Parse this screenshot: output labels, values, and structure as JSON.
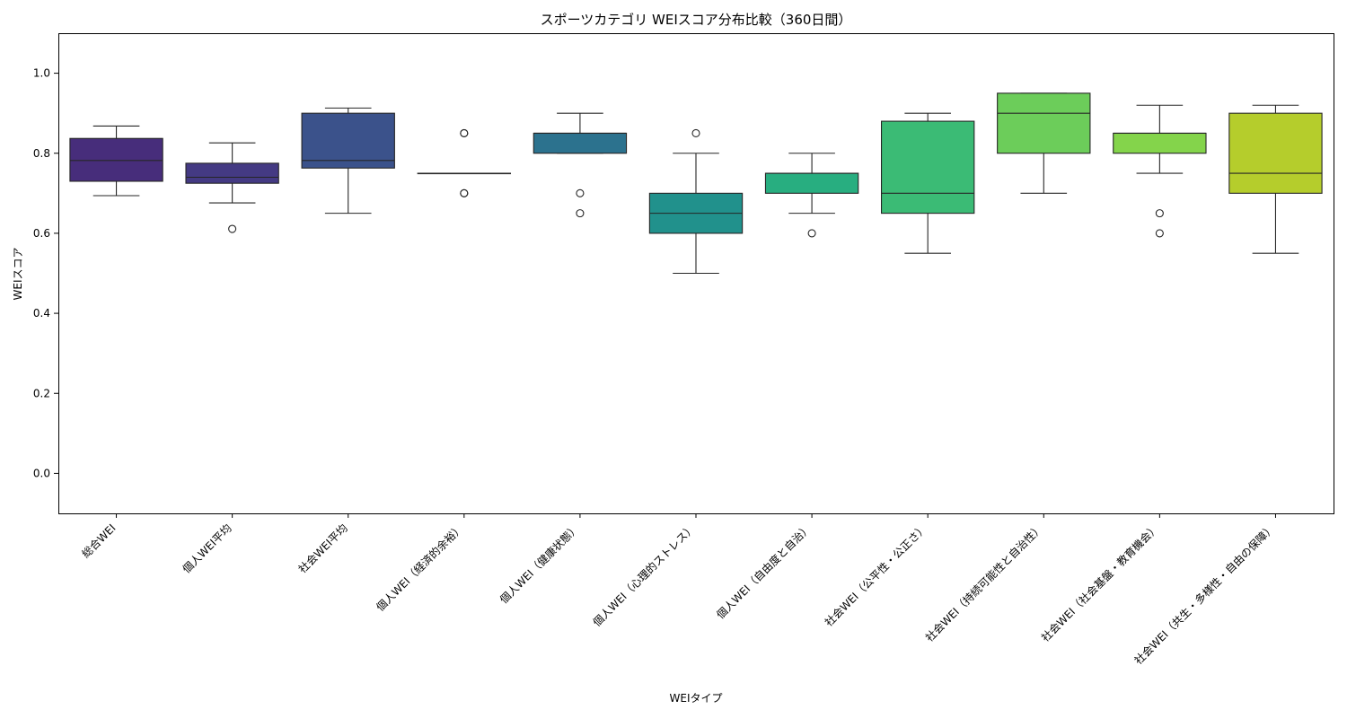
{
  "chart_data": {
    "type": "box",
    "title": "スポーツカテゴリ WEIスコア分布比較（360日間）",
    "xlabel": "WEIタイプ",
    "ylabel": "WEIスコア",
    "ylim": [
      -0.1,
      1.1
    ],
    "yticks": [
      "0.0",
      "0.2",
      "0.4",
      "0.6",
      "0.8",
      "1.0"
    ],
    "grid": false,
    "legend": "none",
    "categories": [
      "総合WEI",
      "個人WEI平均",
      "社会WEI平均",
      "個人WEI（経済的余裕）",
      "個人WEI（健康状態）",
      "個人WEI（心理的ストレス）",
      "個人WEI（自由度と自治）",
      "社会WEI（公平性・公正さ）",
      "社会WEI（持続可能性と自治性）",
      "社会WEI（社会基盤・教育機会）",
      "社会WEI（共生・多様性・自由の保障）"
    ],
    "boxes": [
      {
        "whislo": 0.694,
        "q1": 0.73,
        "med": 0.782,
        "q3": 0.837,
        "whishi": 0.868,
        "fliers": [],
        "color": "#472d7b"
      },
      {
        "whislo": 0.676,
        "q1": 0.725,
        "med": 0.74,
        "q3": 0.775,
        "whishi": 0.826,
        "fliers": [
          0.611
        ],
        "color": "#443a83"
      },
      {
        "whislo": 0.65,
        "q1": 0.763,
        "med": 0.782,
        "q3": 0.9,
        "whishi": 0.913,
        "fliers": [],
        "color": "#3b528b"
      },
      {
        "whislo": 0.75,
        "q1": 0.75,
        "med": 0.75,
        "q3": 0.75,
        "whishi": 0.75,
        "fliers": [
          0.85,
          0.85,
          0.7,
          0.7
        ],
        "color": "#31688e"
      },
      {
        "whislo": 0.8,
        "q1": 0.8,
        "med": 0.85,
        "q3": 0.85,
        "whishi": 0.9,
        "fliers": [
          0.7,
          0.65
        ],
        "color": "#2c728e"
      },
      {
        "whislo": 0.5,
        "q1": 0.6,
        "med": 0.65,
        "q3": 0.7,
        "whishi": 0.8,
        "fliers": [
          0.85
        ],
        "color": "#21918c"
      },
      {
        "whislo": 0.65,
        "q1": 0.7,
        "med": 0.75,
        "q3": 0.75,
        "whishi": 0.8,
        "fliers": [
          0.6
        ],
        "color": "#28ae80"
      },
      {
        "whislo": 0.55,
        "q1": 0.65,
        "med": 0.7,
        "q3": 0.88,
        "whishi": 0.9,
        "fliers": [],
        "color": "#3bbb75"
      },
      {
        "whislo": 0.7,
        "q1": 0.8,
        "med": 0.9,
        "q3": 0.95,
        "whishi": 0.95,
        "fliers": [],
        "color": "#6ccd5a"
      },
      {
        "whislo": 0.75,
        "q1": 0.8,
        "med": 0.85,
        "q3": 0.85,
        "whishi": 0.92,
        "fliers": [
          0.65,
          0.6
        ],
        "color": "#84d44b"
      },
      {
        "whislo": 0.55,
        "q1": 0.7,
        "med": 0.75,
        "q3": 0.9,
        "whishi": 0.92,
        "fliers": [],
        "color": "#b5cd2c"
      }
    ]
  }
}
